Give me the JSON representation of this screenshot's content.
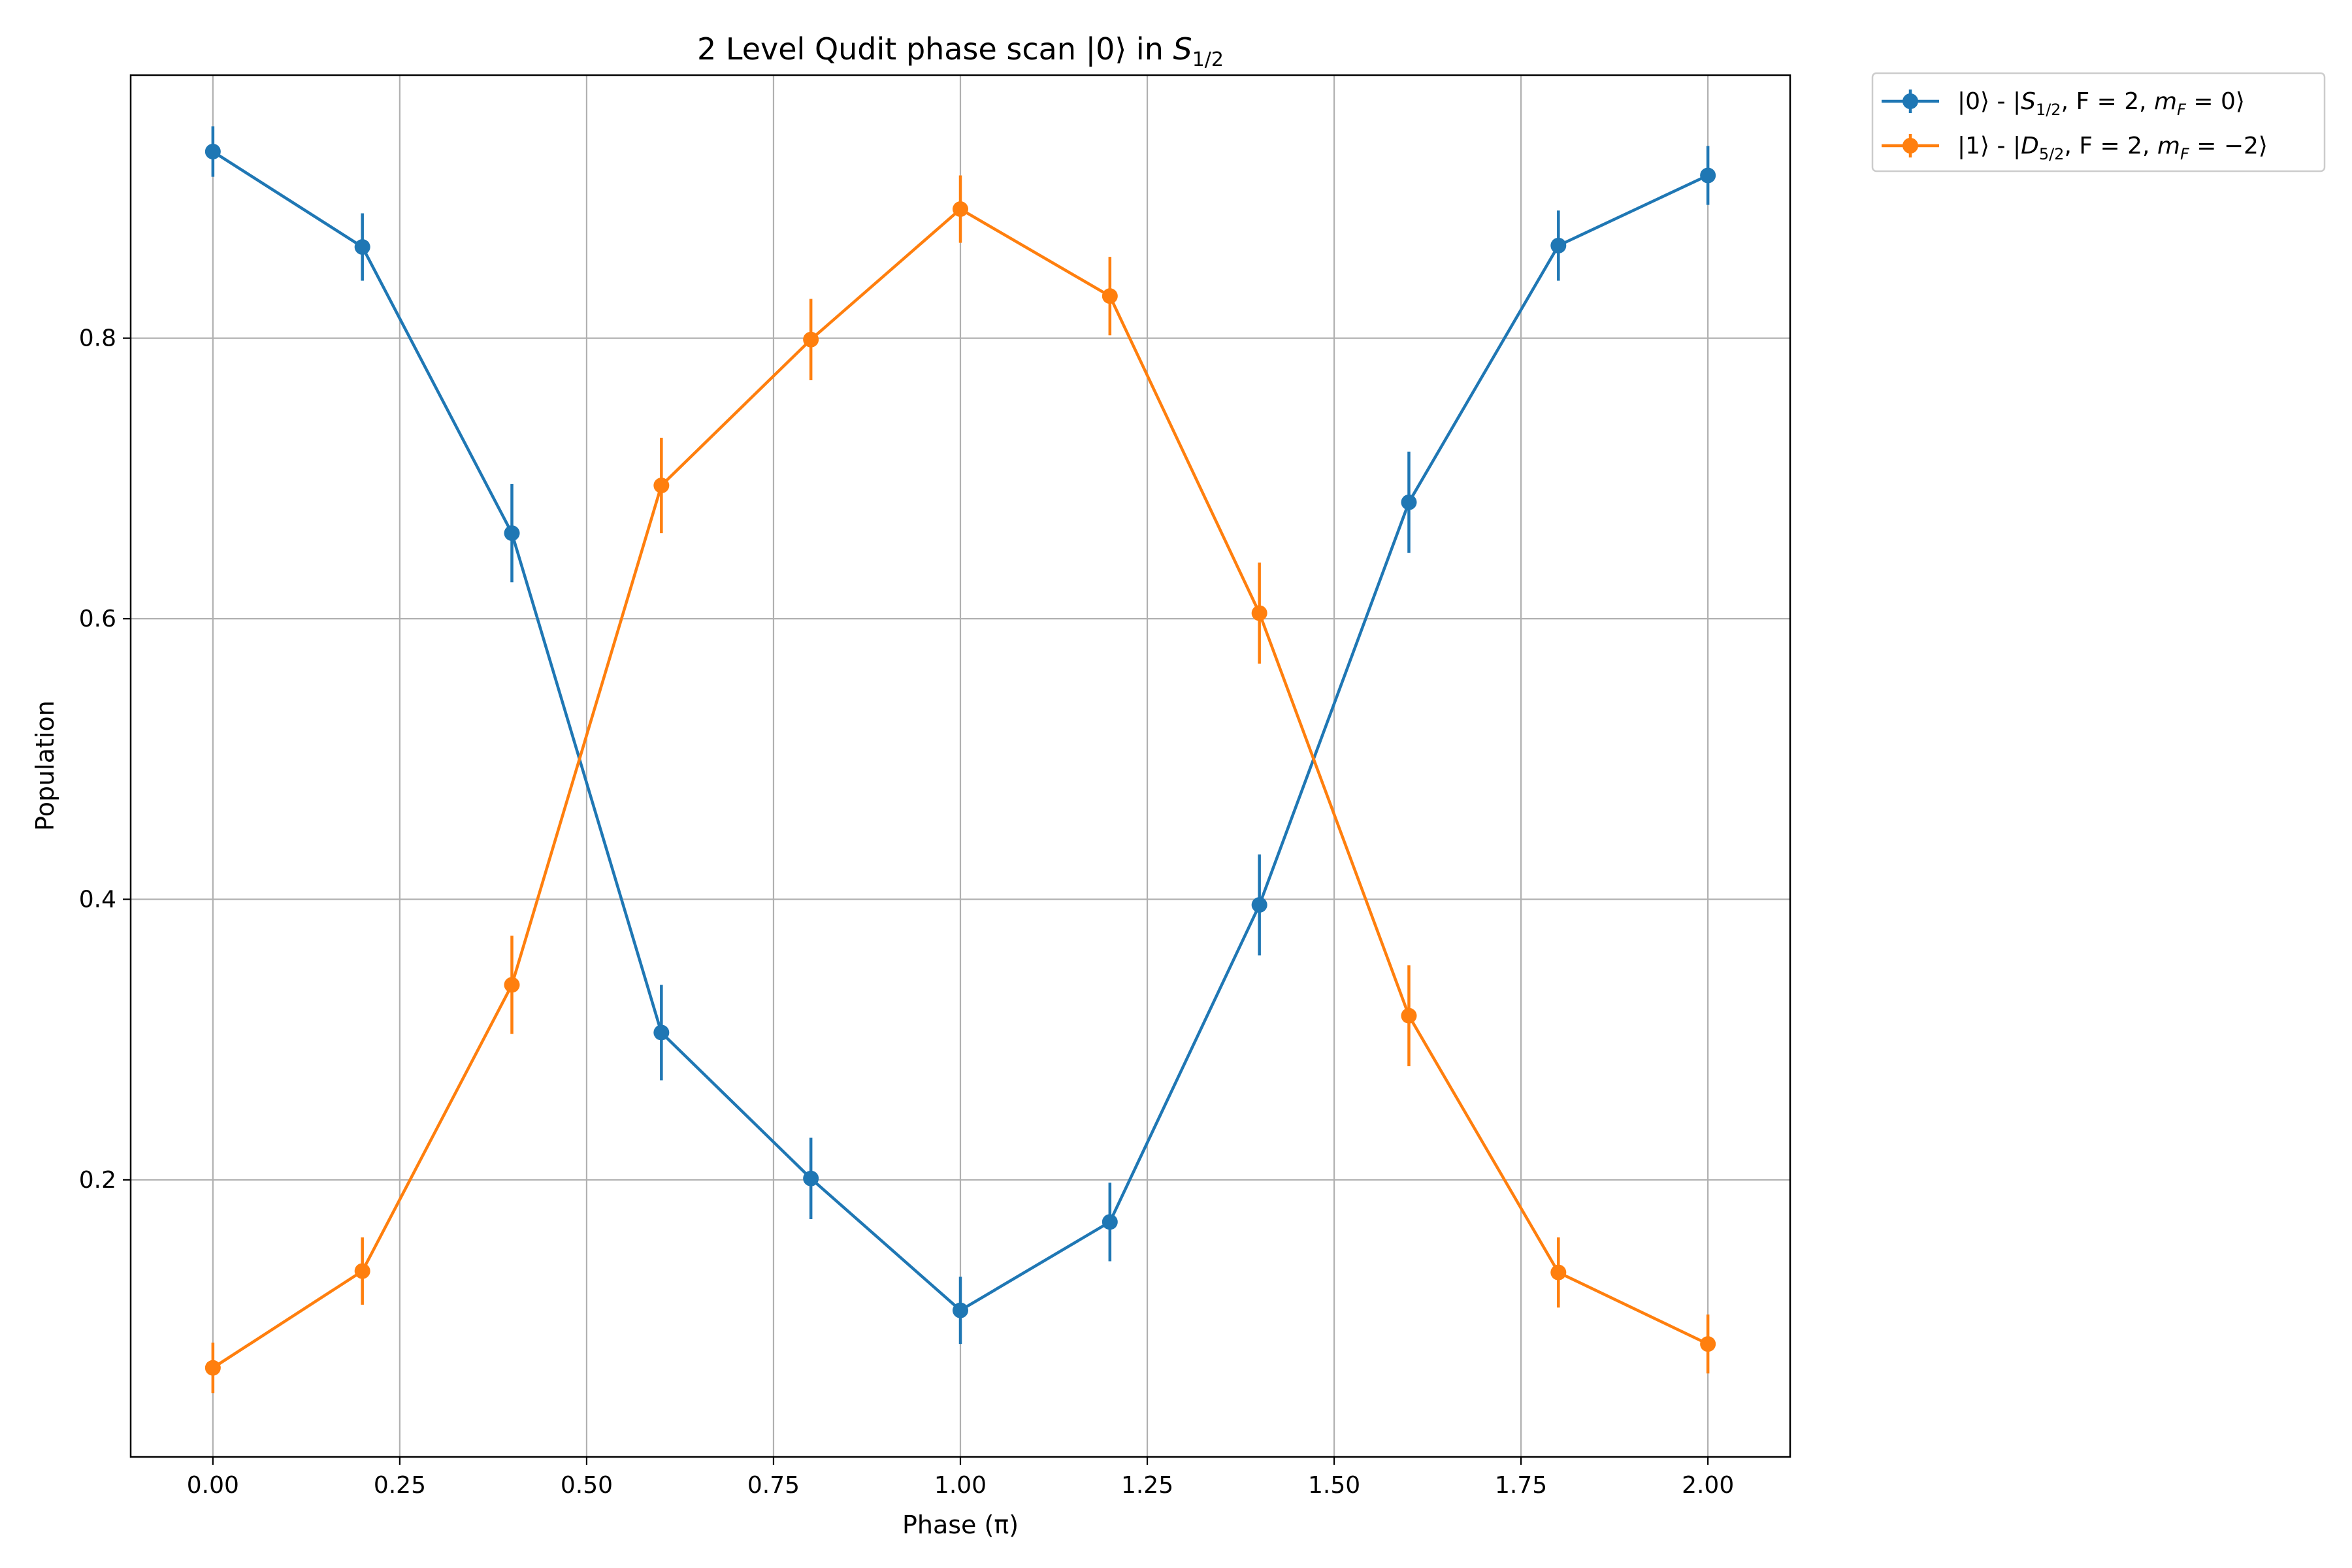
{
  "chart_data": {
    "type": "line",
    "title_main": "2 Level Qudit phase scan |0⟩ in ",
    "title_sym": "S",
    "title_sub": "1/2",
    "xlabel": "Phase (π)",
    "ylabel": "Population",
    "xlim": [
      -0.11,
      2.11
    ],
    "ylim": [
      0.0025,
      0.9875
    ],
    "grid": true,
    "legend_position": "outside top-right",
    "x_ticks": [
      {
        "value": 0.0,
        "label": "0.00"
      },
      {
        "value": 0.25,
        "label": "0.25"
      },
      {
        "value": 0.5,
        "label": "0.50"
      },
      {
        "value": 0.75,
        "label": "0.75"
      },
      {
        "value": 1.0,
        "label": "1.00"
      },
      {
        "value": 1.25,
        "label": "1.25"
      },
      {
        "value": 1.5,
        "label": "1.50"
      },
      {
        "value": 1.75,
        "label": "1.75"
      },
      {
        "value": 2.0,
        "label": "2.00"
      }
    ],
    "y_ticks": [
      {
        "value": 0.2,
        "label": "0.2"
      },
      {
        "value": 0.4,
        "label": "0.4"
      },
      {
        "value": 0.6,
        "label": "0.6"
      },
      {
        "value": 0.8,
        "label": "0.8"
      }
    ],
    "x": [
      0.0,
      0.2,
      0.4,
      0.6,
      0.8,
      1.0,
      1.2,
      1.4,
      1.6,
      1.8,
      2.0
    ],
    "series": [
      {
        "name_ket": "|0⟩ - |",
        "name_sym": "S",
        "name_sub": "1/2",
        "name_rest": ", F = 2, ",
        "name_m": "m",
        "name_msub": "F",
        "name_tail": " = 0⟩",
        "color": "#1f77b4",
        "values": [
          0.933,
          0.865,
          0.661,
          0.305,
          0.201,
          0.107,
          0.17,
          0.396,
          0.683,
          0.866,
          0.916
        ],
        "errors": [
          0.018,
          0.024,
          0.035,
          0.034,
          0.029,
          0.024,
          0.028,
          0.036,
          0.036,
          0.025,
          0.021
        ]
      },
      {
        "name_ket": "|1⟩ - |",
        "name_sym": "D",
        "name_sub": "5/2",
        "name_rest": ", F = 2, ",
        "name_m": "m",
        "name_msub": "F",
        "name_tail": " = −2⟩",
        "color": "#ff7f0e",
        "values": [
          0.066,
          0.135,
          0.339,
          0.695,
          0.799,
          0.892,
          0.83,
          0.604,
          0.317,
          0.134,
          0.083
        ],
        "errors": [
          0.018,
          0.024,
          0.035,
          0.034,
          0.029,
          0.024,
          0.028,
          0.036,
          0.036,
          0.025,
          0.021
        ]
      }
    ]
  }
}
